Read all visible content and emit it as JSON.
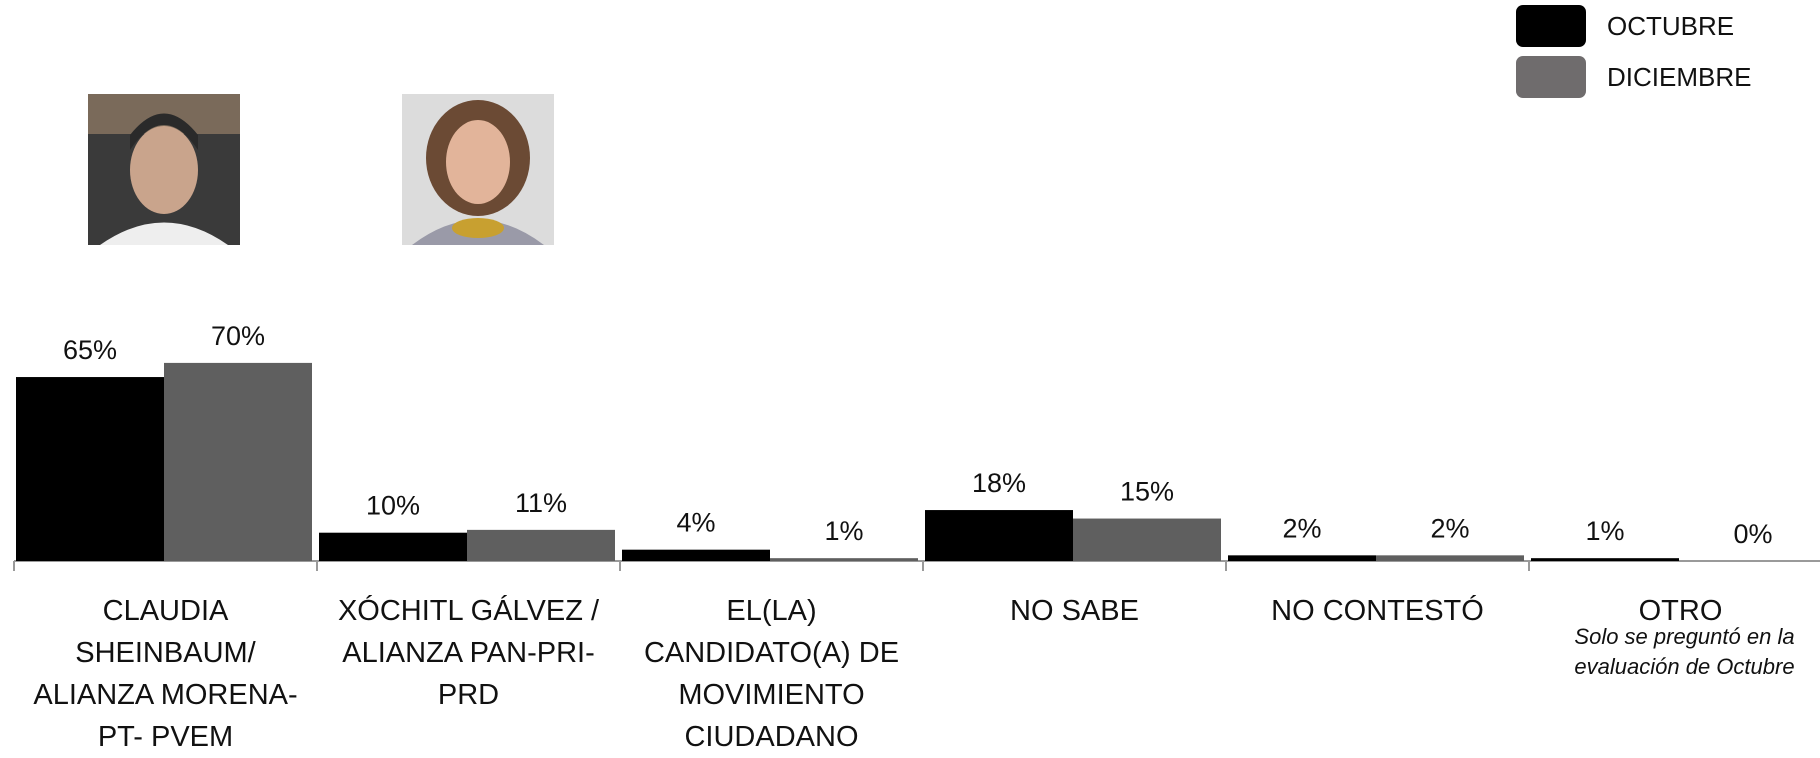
{
  "chart_data": {
    "type": "bar",
    "categories": [
      "CLAUDIA SHEINBAUM/ ALIANZA MORENA-PT- PVEM",
      "XÓCHITL GÁLVEZ / ALIANZA PAN-PRI-PRD",
      "EL(LA) CANDIDATO(A) DE MOVIMIENTO CIUDADANO",
      "NO SABE",
      "NO CONTESTÓ",
      "OTRO"
    ],
    "series": [
      {
        "name": "OCTUBRE",
        "color": "#000000",
        "values": [
          65,
          10,
          4,
          18,
          2,
          1
        ],
        "value_labels": [
          "65%",
          "10%",
          "4%",
          "18%",
          "2%",
          "1%"
        ]
      },
      {
        "name": "DICIEMBRE",
        "color": "#5f5f5f",
        "values": [
          70,
          11,
          1,
          15,
          2,
          0
        ],
        "value_labels": [
          "70%",
          "11%",
          "1%",
          "15%",
          "2%",
          "0%"
        ]
      }
    ],
    "annotation": "Solo se preguntó en la evaluación de Octubre",
    "legend": "top-right"
  }
}
